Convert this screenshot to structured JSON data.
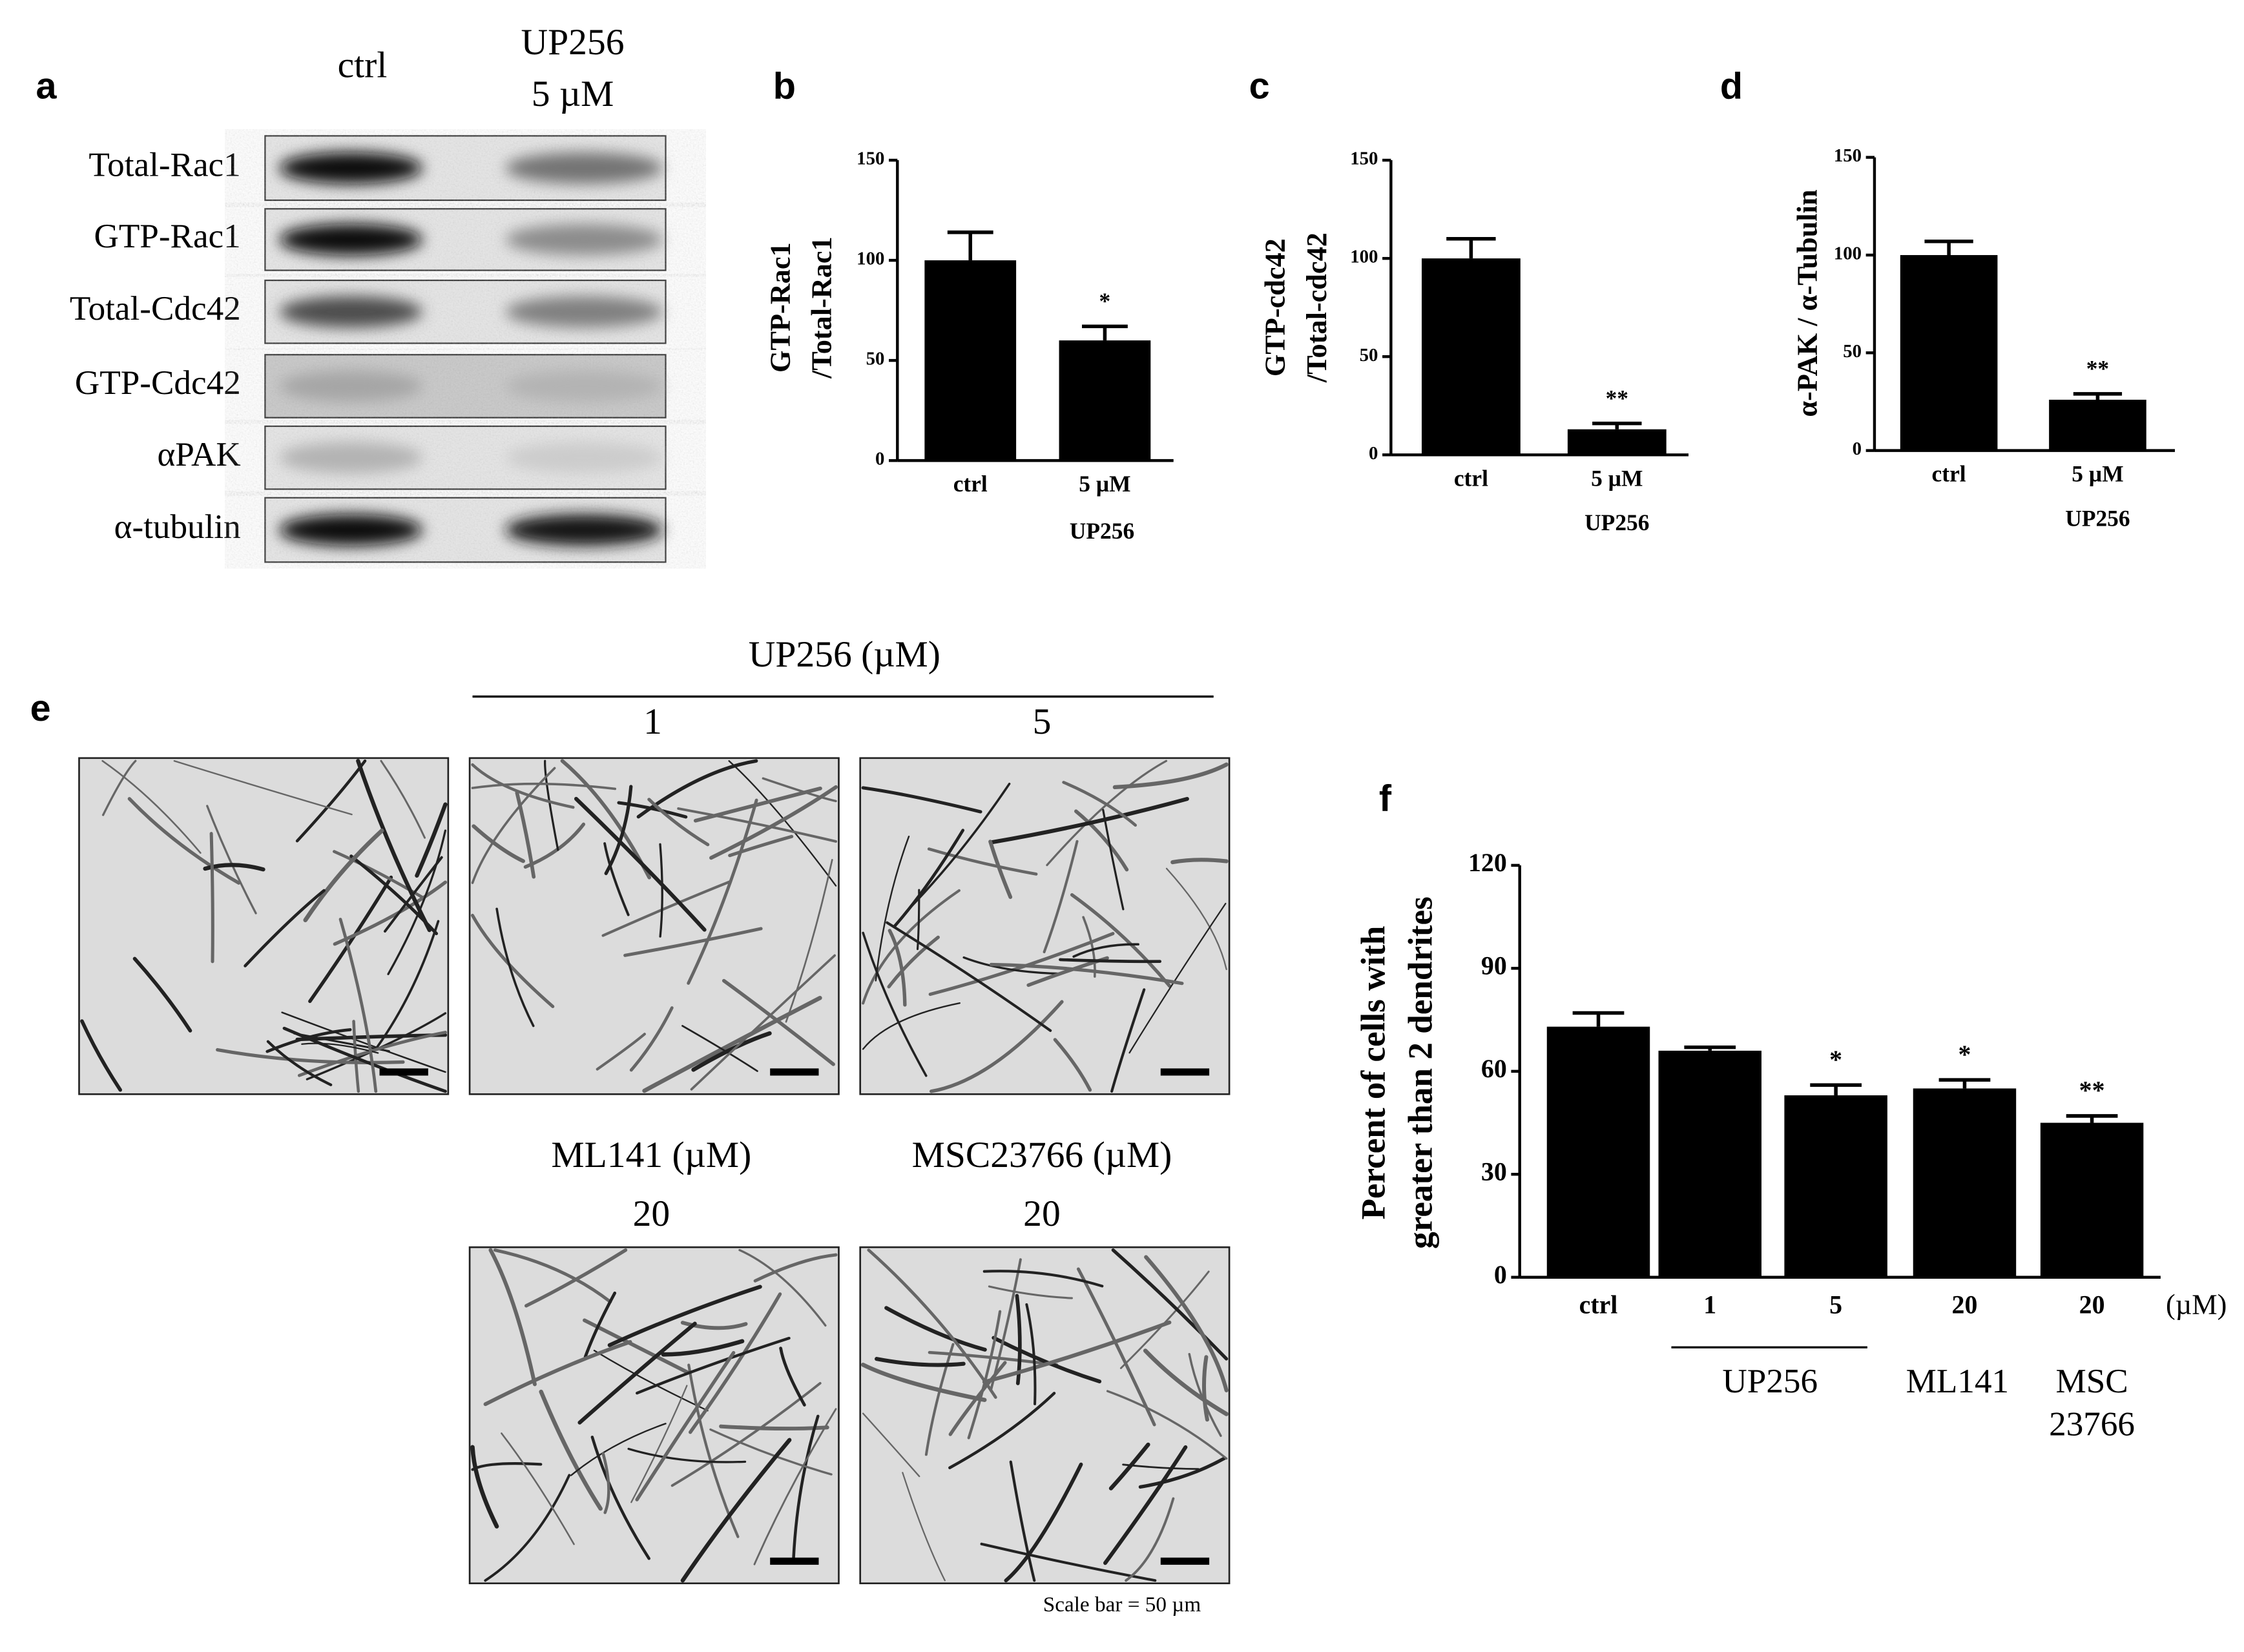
{
  "panel_labels": [
    "a",
    "b",
    "c",
    "d",
    "e",
    "f"
  ],
  "blot": {
    "lanes": [
      [
        "ctrl"
      ],
      [
        "UP256",
        "5 µM"
      ]
    ],
    "rows": [
      "Total-Rac1",
      "GTP-Rac1",
      "Total-Cdc42",
      "GTP-Cdc42",
      "αPAK",
      "α-tubulin"
    ]
  },
  "micrographs": {
    "up256_title": "UP256 (µM)",
    "up256_doses": [
      "1",
      "5"
    ],
    "ml141_title": "ML141 (µM)",
    "ml141_dose": "20",
    "msc_title": "MSC23766 (µM)",
    "msc_dose": "20",
    "scale_note": "Scale bar = 50 µm"
  },
  "chart_data": [
    {
      "type": "bar",
      "y_label": [
        "GTP-Rac1",
        "/Total-Rac1"
      ],
      "categories": [
        "ctrl",
        "5 µM"
      ],
      "values": [
        100,
        60
      ],
      "errors": [
        14,
        7
      ],
      "significance": [
        null,
        "*"
      ],
      "group_labels": [
        [
          "UP256"
        ]
      ],
      "color": "#000000",
      "ylim": [
        0,
        150
      ],
      "yticks": [
        0,
        50,
        100,
        150
      ]
    },
    {
      "type": "bar",
      "y_label": [
        "GTP-cdc42",
        "/Total-cdc42"
      ],
      "categories": [
        "ctrl",
        "5 µM"
      ],
      "values": [
        100,
        13
      ],
      "errors": [
        10,
        3
      ],
      "significance": [
        null,
        "**"
      ],
      "group_labels": [
        [
          "UP256"
        ]
      ],
      "color": "#000000",
      "ylim": [
        0,
        150
      ],
      "yticks": [
        0,
        50,
        100,
        150
      ]
    },
    {
      "type": "bar",
      "y_label": [
        "α-PAK / α-Tubulin"
      ],
      "categories": [
        "ctrl",
        "5 µM"
      ],
      "values": [
        100,
        26
      ],
      "errors": [
        7,
        3
      ],
      "significance": [
        null,
        "**"
      ],
      "group_labels": [
        [
          "UP256"
        ]
      ],
      "color": "#000000",
      "ylim": [
        0,
        150
      ],
      "yticks": [
        0,
        50,
        100,
        150
      ]
    },
    {
      "type": "bar",
      "y_label": [
        "Percent of cells with",
        "greater than 2 dendrites"
      ],
      "categories": [
        "ctrl",
        "1",
        "5",
        "20",
        "20"
      ],
      "x_unit": "(µM)",
      "values": [
        73,
        66,
        53,
        55,
        45
      ],
      "errors": [
        4,
        1,
        3,
        2.5,
        2
      ],
      "significance": [
        null,
        null,
        "*",
        "*",
        "**"
      ],
      "group_labels": [
        [
          "UP256"
        ],
        [
          "ML141"
        ],
        [
          "MSC",
          "23766"
        ]
      ],
      "color": "#000000",
      "ylim": [
        0,
        120
      ],
      "yticks": [
        0,
        30,
        60,
        90,
        120
      ]
    }
  ]
}
